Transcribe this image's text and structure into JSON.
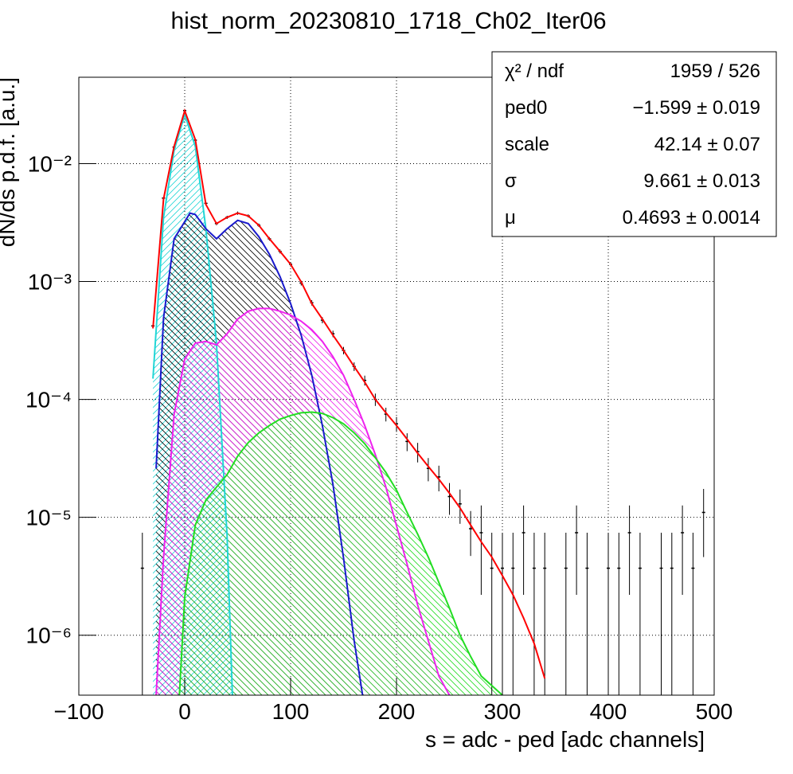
{
  "chart_data": {
    "type": "hist-fit",
    "title": "hist_norm_20230810_1718_Ch02_Iter06",
    "x_label": "s = adc - ped [adc channels]",
    "y_label": "dN/ds p.d.f. [a.u.]",
    "xlim": [
      -100,
      500
    ],
    "xticks": [
      {
        "value": -100,
        "label": "−100"
      },
      0,
      100,
      200,
      300,
      400,
      500
    ],
    "ylim": [
      3.1e-07,
      0.054
    ],
    "yscale": "log",
    "yticks": [
      {
        "value": 1e-06,
        "label": "10⁻⁶"
      },
      {
        "value": 1e-05,
        "label": "10⁻⁵"
      },
      {
        "value": 0.0001,
        "label": "10⁻⁴"
      },
      {
        "value": 0.001,
        "label": "10⁻³"
      },
      {
        "value": 0.01,
        "label": "10⁻²"
      }
    ],
    "grid": true,
    "stats": [
      {
        "name": "χ² / ndf",
        "value": "1959 / 526"
      },
      {
        "name": "ped0",
        "value": "−1.599 ± 0.019"
      },
      {
        "name": "scale",
        "value": "42.14 ± 0.07"
      },
      {
        "name": "σ",
        "value": "9.661 ± 0.013"
      },
      {
        "name": "μ",
        "value": "0.4693 ± 0.0014"
      }
    ],
    "series": [
      {
        "kind": "histogram",
        "color": "#000000",
        "x": [
          -40,
          -30,
          -20,
          -10,
          0,
          10,
          20,
          30,
          40,
          50,
          60,
          70,
          80,
          90,
          100,
          110,
          120,
          130,
          140,
          150,
          160,
          170,
          180,
          190,
          200,
          210,
          220,
          230,
          240,
          250,
          260,
          270,
          280,
          290,
          300,
          310,
          320,
          330,
          340,
          350,
          360,
          370,
          380,
          390,
          400,
          410,
          420,
          430,
          440,
          450,
          460,
          470,
          480,
          490
        ],
        "values": [
          3.7e-06,
          0.00042,
          0.0051,
          0.0138,
          0.0282,
          0.0158,
          0.0046,
          0.0031,
          0.0035,
          0.0038,
          0.0036,
          0.003,
          0.0023,
          0.0018,
          0.0014,
          0.00097,
          0.00066,
          0.00047,
          0.00036,
          0.00026,
          0.00019,
          0.000145,
          0.0001,
          7.5e-05,
          6.2e-05,
          4.4e-05,
          3.6e-05,
          2.6e-05,
          2.2e-05,
          1.5e-05,
          1.3e-05,
          8e-06,
          7.4e-06,
          3.7e-06,
          3.7e-06,
          3.7e-06,
          7.4e-06,
          3.7e-06,
          3.7e-06,
          null,
          3.7e-06,
          7.4e-06,
          3.7e-06,
          null,
          3.7e-06,
          3.7e-06,
          7.4e-06,
          3.7e-06,
          null,
          3.7e-06,
          3.7e-06,
          7.4e-06,
          3.7e-06,
          1.1e-05
        ],
        "errors": [
          3.7e-06,
          1.3e-05,
          0.0001,
          0.00025,
          0.0004,
          0.0003,
          0.00014,
          0.0001,
          0.00011,
          0.00012,
          0.00011,
          0.0001,
          8e-05,
          7e-05,
          6e-05,
          4.5e-05,
          3.5e-05,
          2.8e-05,
          2.3e-05,
          1.9e-05,
          1.6e-05,
          1.4e-05,
          1.2e-05,
          1e-05,
          9e-06,
          7.6e-06,
          6.8e-06,
          5.8e-06,
          5.4e-06,
          4.5e-06,
          4.2e-06,
          3.3e-06,
          5.2e-06,
          3.7e-06,
          3.7e-06,
          3.7e-06,
          5.2e-06,
          3.7e-06,
          3.7e-06,
          null,
          3.7e-06,
          5.2e-06,
          3.7e-06,
          null,
          3.7e-06,
          3.7e-06,
          5.2e-06,
          3.7e-06,
          null,
          3.7e-06,
          3.7e-06,
          5.2e-06,
          3.7e-06,
          6.4e-06
        ]
      },
      {
        "kind": "curve",
        "color": "#22d6d6",
        "hatch_color": "#22d6d6",
        "hatch": "up",
        "x": [
          -30,
          -20,
          -10,
          0,
          10,
          20,
          30,
          40,
          45
        ],
        "values": [
          0.00015,
          0.0035,
          0.013,
          0.026,
          0.014,
          0.0028,
          0.0003,
          7e-06,
          3.1e-07
        ]
      },
      {
        "kind": "curve",
        "color": "#1a1acc",
        "hatch_color": "#000000",
        "hatch": "down",
        "x": [
          -27,
          -20,
          -10,
          5,
          10,
          20,
          30,
          40,
          50,
          60,
          70,
          80,
          90,
          100,
          110,
          120,
          130,
          140,
          150,
          160,
          168
        ],
        "values": [
          2.6e-05,
          0.00049,
          0.0023,
          0.0038,
          0.0037,
          0.0028,
          0.0023,
          0.0028,
          0.0033,
          0.0031,
          0.0024,
          0.0017,
          0.0011,
          0.00065,
          0.00035,
          0.00016,
          6e-05,
          1.9e-05,
          4.5e-06,
          9e-07,
          3.1e-07
        ]
      },
      {
        "kind": "curve",
        "color": "#ee22ee",
        "hatch_color": "#ee22ee",
        "hatch": "down",
        "x": [
          -27,
          -20,
          -10,
          0,
          10,
          20,
          30,
          40,
          50,
          60,
          70,
          80,
          90,
          100,
          110,
          120,
          130,
          140,
          150,
          160,
          170,
          180,
          190,
          200,
          210,
          220,
          230,
          240,
          250
        ],
        "values": [
          3.1e-07,
          4.6e-06,
          7.5e-05,
          0.00022,
          0.0003,
          0.00031,
          0.00029,
          0.00036,
          0.00048,
          0.00056,
          0.00059,
          0.00059,
          0.00056,
          0.00052,
          0.00046,
          0.00039,
          0.00031,
          0.00023,
          0.00016,
          0.0001,
          6e-05,
          3.4e-05,
          1.8e-05,
          8.5e-06,
          4e-06,
          1.8e-06,
          9e-07,
          4.5e-07,
          3.1e-07
        ]
      },
      {
        "kind": "curve",
        "color": "#22dd22",
        "hatch_color": "#22dd22",
        "hatch": "down",
        "x": [
          -5,
          0,
          10,
          20,
          30,
          40,
          50,
          60,
          70,
          80,
          90,
          100,
          110,
          120,
          130,
          140,
          150,
          160,
          170,
          180,
          190,
          200,
          210,
          220,
          230,
          240,
          250,
          260,
          270,
          280,
          300
        ],
        "values": [
          3.1e-07,
          2.1e-06,
          8.6e-06,
          1.4e-05,
          1.8e-05,
          2.3e-05,
          3.3e-05,
          4.3e-05,
          5.2e-05,
          6e-05,
          6.8e-05,
          7.3e-05,
          7.7e-05,
          7.8e-05,
          7.6e-05,
          7e-05,
          6.2e-05,
          5.2e-05,
          4.2e-05,
          3.2e-05,
          2.4e-05,
          1.7e-05,
          1.1e-05,
          7.2e-06,
          4.6e-06,
          2.8e-06,
          1.7e-06,
          1e-06,
          6.6e-07,
          4.5e-07,
          3.1e-07
        ]
      },
      {
        "kind": "curve",
        "color": "#ff0000",
        "x": [
          -30,
          -20,
          -10,
          0,
          10,
          20,
          30,
          40,
          50,
          60,
          70,
          80,
          90,
          100,
          110,
          120,
          130,
          140,
          150,
          160,
          170,
          180,
          190,
          200,
          210,
          220,
          230,
          240,
          250,
          260,
          270,
          280,
          290,
          300,
          310,
          320,
          330,
          340
        ],
        "values": [
          0.0004,
          0.005,
          0.014,
          0.028,
          0.016,
          0.0045,
          0.0031,
          0.0035,
          0.0038,
          0.0036,
          0.003,
          0.0023,
          0.0018,
          0.0014,
          0.00099,
          0.00065,
          0.00048,
          0.00035,
          0.00026,
          0.00019,
          0.00014,
          0.0001,
          7.7e-05,
          6e-05,
          4.6e-05,
          3.5e-05,
          2.7e-05,
          2.1e-05,
          1.6e-05,
          1.2e-05,
          8.6e-06,
          6.2e-06,
          4.6e-06,
          3.2e-06,
          2.2e-06,
          1.4e-06,
          8.5e-07,
          4.3e-07
        ]
      }
    ]
  }
}
